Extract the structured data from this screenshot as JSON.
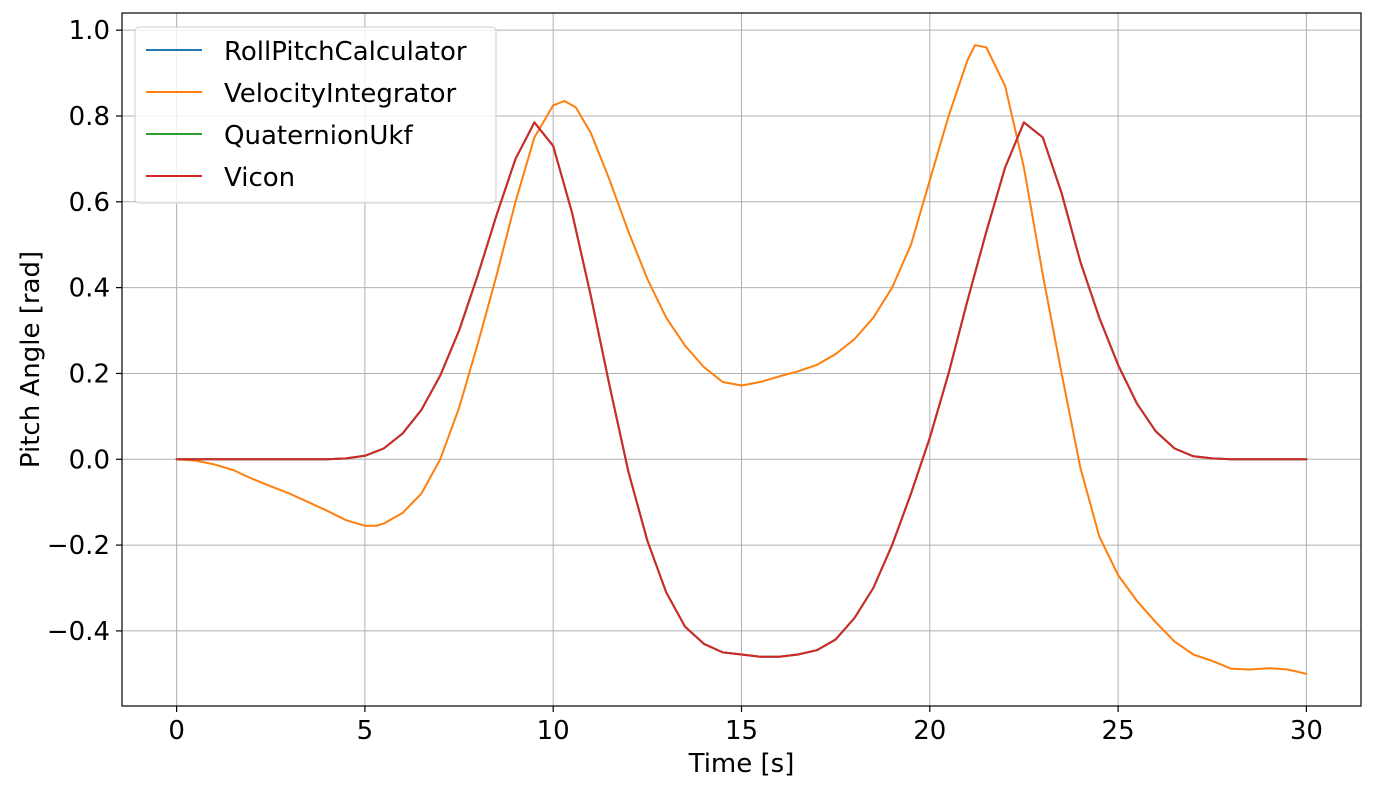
{
  "chart_data": {
    "type": "line",
    "title": "",
    "xlabel": "Time [s]",
    "ylabel": "Pitch Angle [rad]",
    "xlim": [
      -1.45,
      31.45
    ],
    "ylim": [
      -0.575,
      1.04
    ],
    "xticks": [
      0,
      5,
      10,
      15,
      20,
      25,
      30
    ],
    "xtick_labels": [
      "0",
      "5",
      "10",
      "15",
      "20",
      "25",
      "30"
    ],
    "yticks": [
      -0.4,
      -0.2,
      0.0,
      0.2,
      0.4,
      0.6,
      0.8,
      1.0
    ],
    "ytick_labels": [
      "−0.4",
      "−0.2",
      "0.0",
      "0.2",
      "0.4",
      "0.6",
      "0.8",
      "1.0"
    ],
    "grid": true,
    "legend_position": "top-left",
    "series": [
      {
        "name": "RollPitchCalculator",
        "color": "#1f77b4",
        "x": [
          0,
          1,
          2,
          3,
          4,
          4.5,
          5,
          5.5,
          6,
          6.5,
          7,
          7.5,
          8,
          8.5,
          9,
          9.5,
          10,
          10.5,
          11,
          11.5,
          12,
          12.5,
          13,
          13.5,
          14,
          14.5,
          15,
          15.5,
          16,
          16.5,
          17,
          17.5,
          18,
          18.5,
          19,
          19.5,
          20,
          20.5,
          21,
          21.5,
          22,
          22.5,
          23,
          23.5,
          24,
          24.5,
          25,
          25.5,
          26,
          26.5,
          27,
          27.5,
          28,
          29,
          30
        ],
        "y": [
          0.0,
          0.0,
          0.0,
          0.0,
          0.0,
          0.002,
          0.008,
          0.025,
          0.06,
          0.115,
          0.195,
          0.3,
          0.43,
          0.57,
          0.7,
          0.785,
          0.73,
          0.575,
          0.38,
          0.17,
          -0.03,
          -0.19,
          -0.31,
          -0.39,
          -0.43,
          -0.45,
          -0.455,
          -0.46,
          -0.46,
          -0.455,
          -0.445,
          -0.42,
          -0.37,
          -0.3,
          -0.2,
          -0.08,
          0.05,
          0.2,
          0.37,
          0.53,
          0.68,
          0.785,
          0.75,
          0.62,
          0.46,
          0.33,
          0.22,
          0.13,
          0.065,
          0.025,
          0.007,
          0.002,
          0.0,
          0.0,
          0.0
        ]
      },
      {
        "name": "VelocityIntegrator",
        "color": "#ff7f0e",
        "x": [
          0,
          0.5,
          1,
          1.5,
          2,
          2.5,
          3,
          3.5,
          4,
          4.5,
          5,
          5.3,
          5.5,
          6,
          6.5,
          7,
          7.5,
          8,
          8.5,
          9,
          9.5,
          10,
          10.3,
          10.6,
          11,
          11.5,
          12,
          12.5,
          13,
          13.5,
          14,
          14.5,
          15,
          15.5,
          16,
          16.5,
          17,
          17.5,
          18,
          18.5,
          19,
          19.5,
          20,
          20.5,
          21,
          21.2,
          21.5,
          22,
          22.5,
          23,
          23.5,
          24,
          24.5,
          25,
          25.5,
          26,
          26.5,
          27,
          27.5,
          28,
          28.5,
          29,
          29.5,
          30
        ],
        "y": [
          0.0,
          -0.003,
          -0.012,
          -0.025,
          -0.045,
          -0.063,
          -0.08,
          -0.1,
          -0.12,
          -0.142,
          -0.155,
          -0.155,
          -0.15,
          -0.125,
          -0.08,
          0.0,
          0.12,
          0.27,
          0.43,
          0.6,
          0.75,
          0.825,
          0.835,
          0.82,
          0.76,
          0.65,
          0.53,
          0.42,
          0.33,
          0.265,
          0.215,
          0.18,
          0.172,
          0.18,
          0.193,
          0.205,
          0.22,
          0.245,
          0.28,
          0.33,
          0.4,
          0.5,
          0.65,
          0.8,
          0.93,
          0.965,
          0.96,
          0.87,
          0.68,
          0.43,
          0.2,
          -0.02,
          -0.18,
          -0.27,
          -0.33,
          -0.38,
          -0.425,
          -0.455,
          -0.47,
          -0.488,
          -0.49,
          -0.487,
          -0.49,
          -0.5
        ]
      },
      {
        "name": "QuaternionUkf",
        "color": "#2ca02c",
        "x": [
          0,
          1,
          2,
          3,
          4,
          4.5,
          5,
          5.5,
          6,
          6.5,
          7,
          7.5,
          8,
          8.5,
          9,
          9.5,
          10,
          10.5,
          11,
          11.5,
          12,
          12.5,
          13,
          13.5,
          14,
          14.5,
          15,
          15.5,
          16,
          16.5,
          17,
          17.5,
          18,
          18.5,
          19,
          19.5,
          20,
          20.5,
          21,
          21.5,
          22,
          22.5,
          23,
          23.5,
          24,
          24.5,
          25,
          25.5,
          26,
          26.5,
          27,
          27.5,
          28,
          29,
          30
        ],
        "y": [
          0.0,
          0.0,
          0.0,
          0.0,
          0.0,
          0.002,
          0.008,
          0.025,
          0.06,
          0.115,
          0.195,
          0.3,
          0.43,
          0.57,
          0.7,
          0.785,
          0.73,
          0.575,
          0.38,
          0.17,
          -0.03,
          -0.19,
          -0.31,
          -0.39,
          -0.43,
          -0.45,
          -0.455,
          -0.46,
          -0.46,
          -0.455,
          -0.445,
          -0.42,
          -0.37,
          -0.3,
          -0.2,
          -0.08,
          0.05,
          0.2,
          0.37,
          0.53,
          0.68,
          0.785,
          0.75,
          0.62,
          0.46,
          0.33,
          0.22,
          0.13,
          0.065,
          0.025,
          0.007,
          0.002,
          0.0,
          0.0,
          0.0
        ]
      },
      {
        "name": "Vicon",
        "color": "#d62728",
        "x": [
          0,
          1,
          2,
          3,
          4,
          4.5,
          5,
          5.5,
          6,
          6.5,
          7,
          7.5,
          8,
          8.5,
          9,
          9.5,
          10,
          10.5,
          11,
          11.5,
          12,
          12.5,
          13,
          13.5,
          14,
          14.5,
          15,
          15.5,
          16,
          16.5,
          17,
          17.5,
          18,
          18.5,
          19,
          19.5,
          20,
          20.5,
          21,
          21.5,
          22,
          22.5,
          23,
          23.5,
          24,
          24.5,
          25,
          25.5,
          26,
          26.5,
          27,
          27.5,
          28,
          29,
          30
        ],
        "y": [
          0.0,
          0.0,
          0.0,
          0.0,
          0.0,
          0.002,
          0.008,
          0.025,
          0.06,
          0.115,
          0.195,
          0.3,
          0.43,
          0.57,
          0.7,
          0.785,
          0.73,
          0.575,
          0.38,
          0.17,
          -0.03,
          -0.19,
          -0.31,
          -0.39,
          -0.43,
          -0.45,
          -0.455,
          -0.46,
          -0.46,
          -0.455,
          -0.445,
          -0.42,
          -0.37,
          -0.3,
          -0.2,
          -0.08,
          0.05,
          0.2,
          0.37,
          0.53,
          0.68,
          0.785,
          0.75,
          0.62,
          0.46,
          0.33,
          0.22,
          0.13,
          0.065,
          0.025,
          0.007,
          0.002,
          0.0,
          0.0,
          0.0
        ]
      }
    ]
  }
}
